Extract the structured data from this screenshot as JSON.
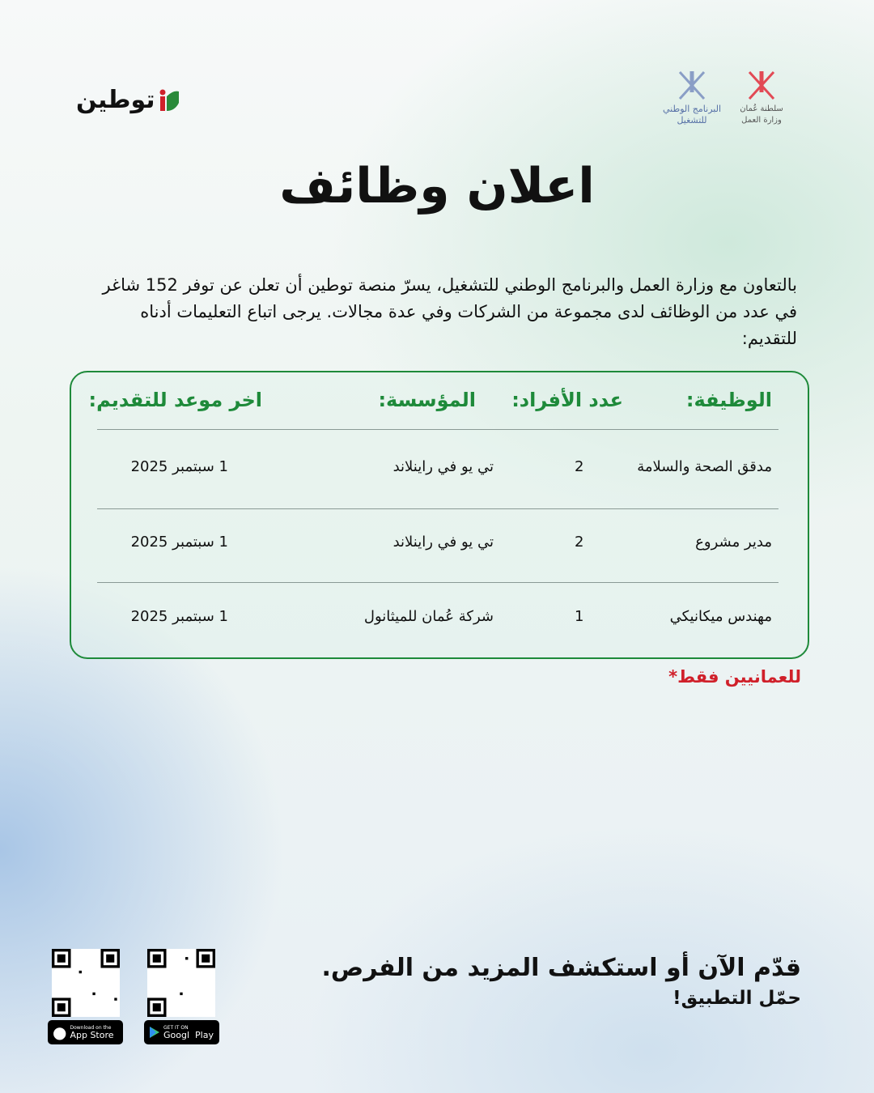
{
  "header": {
    "brand_logo": "توطين",
    "partner1": "البرنامج الوطني للتشغيل",
    "partner2": "سلطنة عُمان وزارة العمل"
  },
  "title": "اعلان وظائف",
  "intro": "بالتعاون مع وزارة العمل والبرنامج الوطني للتشغيل، يسرّ منصة توطين أن تعلن عن توفر 152 شاغر في عدد من الوظائف لدى مجموعة من الشركات وفي عدة مجالات. يرجى اتباع التعليمات أدناه للتقديم:",
  "table": {
    "headers": [
      "الوظيفة:",
      "عدد الأفراد:",
      "المؤسسة:",
      "اخر موعد للتقديم:"
    ],
    "rows": [
      [
        "مدقق الصحة والسلامة",
        "2",
        "تي يو في راينلاند",
        "1 سبتمبر 2025"
      ],
      [
        "مدير مشروع",
        "2",
        "تي يو في راينلاند",
        "1 سبتمبر 2025"
      ],
      [
        "مهندس ميكانيكي",
        "1",
        "شركة عُمان للميثانول",
        "1 سبتمبر 2025"
      ]
    ]
  },
  "note": "للعمانيين فقط*",
  "cta": {
    "line1": "قدّم الآن أو استكشف المزيد من الفرص.",
    "line2": "حمّل التطبيق!"
  },
  "stores": {
    "apple_small": "Download on the",
    "apple": "App Store",
    "google_small": "GET IT ON",
    "google": "Googl  Play"
  },
  "colors": {
    "accent": "#1e8a3a",
    "note": "#d0202a"
  }
}
